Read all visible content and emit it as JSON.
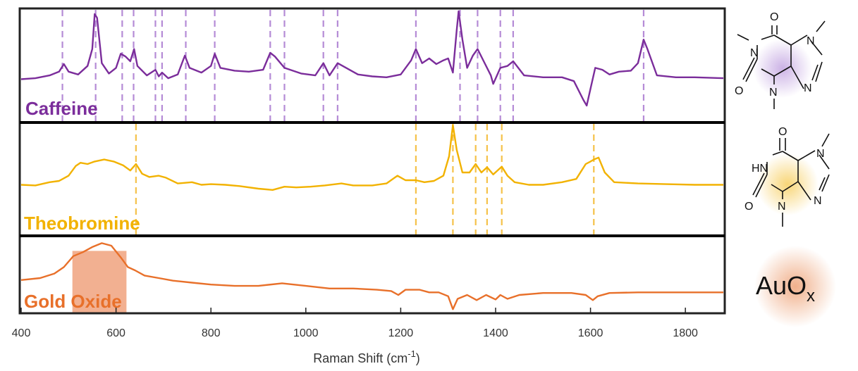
{
  "chart_data": {
    "type": "line",
    "xlabel": "Raman Shift (cm",
    "xlabel_sup": "-1",
    "xlabel_end": ")",
    "xlim": [
      400,
      1880
    ],
    "x_ticks": [
      400,
      600,
      800,
      1000,
      1200,
      1400,
      1600,
      1800
    ],
    "y_ticks_shown": false,
    "series": [
      {
        "name": "Caffeine",
        "color": "#7B2D9B",
        "peak_markers": [
          487,
          557,
          613,
          637,
          683,
          697,
          747,
          808,
          925,
          955,
          1037,
          1067,
          1232,
          1325,
          1362,
          1410,
          1437,
          1712
        ],
        "points": [
          [
            400,
            0.28
          ],
          [
            430,
            0.29
          ],
          [
            460,
            0.32
          ],
          [
            480,
            0.36
          ],
          [
            490,
            0.44
          ],
          [
            500,
            0.36
          ],
          [
            520,
            0.33
          ],
          [
            540,
            0.42
          ],
          [
            550,
            0.6
          ],
          [
            555,
            0.97
          ],
          [
            560,
            0.93
          ],
          [
            570,
            0.45
          ],
          [
            585,
            0.34
          ],
          [
            600,
            0.4
          ],
          [
            610,
            0.55
          ],
          [
            620,
            0.52
          ],
          [
            630,
            0.47
          ],
          [
            638,
            0.6
          ],
          [
            645,
            0.42
          ],
          [
            665,
            0.32
          ],
          [
            683,
            0.38
          ],
          [
            690,
            0.31
          ],
          [
            697,
            0.35
          ],
          [
            710,
            0.29
          ],
          [
            730,
            0.33
          ],
          [
            745,
            0.53
          ],
          [
            755,
            0.4
          ],
          [
            780,
            0.35
          ],
          [
            800,
            0.42
          ],
          [
            808,
            0.55
          ],
          [
            820,
            0.4
          ],
          [
            850,
            0.37
          ],
          [
            880,
            0.36
          ],
          [
            910,
            0.38
          ],
          [
            925,
            0.56
          ],
          [
            935,
            0.52
          ],
          [
            955,
            0.4
          ],
          [
            990,
            0.34
          ],
          [
            1020,
            0.32
          ],
          [
            1037,
            0.45
          ],
          [
            1050,
            0.32
          ],
          [
            1067,
            0.45
          ],
          [
            1085,
            0.4
          ],
          [
            1110,
            0.33
          ],
          [
            1140,
            0.31
          ],
          [
            1170,
            0.3
          ],
          [
            1200,
            0.33
          ],
          [
            1222,
            0.48
          ],
          [
            1232,
            0.6
          ],
          [
            1245,
            0.45
          ],
          [
            1260,
            0.5
          ],
          [
            1275,
            0.44
          ],
          [
            1290,
            0.48
          ],
          [
            1300,
            0.5
          ],
          [
            1310,
            0.35
          ],
          [
            1318,
            0.8
          ],
          [
            1322,
            1.0
          ],
          [
            1330,
            0.7
          ],
          [
            1340,
            0.4
          ],
          [
            1352,
            0.53
          ],
          [
            1362,
            0.6
          ],
          [
            1375,
            0.47
          ],
          [
            1390,
            0.32
          ],
          [
            1395,
            0.23
          ],
          [
            1410,
            0.4
          ],
          [
            1425,
            0.42
          ],
          [
            1437,
            0.47
          ],
          [
            1460,
            0.32
          ],
          [
            1500,
            0.3
          ],
          [
            1540,
            0.3
          ],
          [
            1565,
            0.26
          ],
          [
            1585,
            0.06
          ],
          [
            1592,
            0.0
          ],
          [
            1600,
            0.18
          ],
          [
            1610,
            0.4
          ],
          [
            1625,
            0.38
          ],
          [
            1640,
            0.33
          ],
          [
            1660,
            0.36
          ],
          [
            1685,
            0.37
          ],
          [
            1700,
            0.45
          ],
          [
            1712,
            0.7
          ],
          [
            1720,
            0.6
          ],
          [
            1740,
            0.32
          ],
          [
            1780,
            0.3
          ],
          [
            1820,
            0.3
          ],
          [
            1880,
            0.29
          ]
        ]
      },
      {
        "name": "Theobromine",
        "color": "#F2B200",
        "peak_markers": [
          642,
          1232,
          1310,
          1358,
          1382,
          1413,
          1607
        ],
        "points": [
          [
            400,
            0.06
          ],
          [
            430,
            0.05
          ],
          [
            460,
            0.1
          ],
          [
            480,
            0.12
          ],
          [
            500,
            0.2
          ],
          [
            515,
            0.35
          ],
          [
            525,
            0.4
          ],
          [
            540,
            0.38
          ],
          [
            555,
            0.42
          ],
          [
            575,
            0.45
          ],
          [
            595,
            0.42
          ],
          [
            615,
            0.36
          ],
          [
            630,
            0.28
          ],
          [
            642,
            0.38
          ],
          [
            655,
            0.23
          ],
          [
            670,
            0.18
          ],
          [
            690,
            0.2
          ],
          [
            705,
            0.17
          ],
          [
            730,
            0.08
          ],
          [
            760,
            0.1
          ],
          [
            780,
            0.06
          ],
          [
            800,
            0.07
          ],
          [
            830,
            0.06
          ],
          [
            860,
            0.04
          ],
          [
            900,
            0.0
          ],
          [
            930,
            -0.02
          ],
          [
            955,
            0.03
          ],
          [
            980,
            0.02
          ],
          [
            1010,
            0.03
          ],
          [
            1040,
            0.05
          ],
          [
            1075,
            0.08
          ],
          [
            1100,
            0.05
          ],
          [
            1140,
            0.05
          ],
          [
            1170,
            0.08
          ],
          [
            1193,
            0.2
          ],
          [
            1210,
            0.13
          ],
          [
            1232,
            0.13
          ],
          [
            1250,
            0.1
          ],
          [
            1270,
            0.12
          ],
          [
            1290,
            0.2
          ],
          [
            1302,
            0.5
          ],
          [
            1310,
            0.98
          ],
          [
            1318,
            0.6
          ],
          [
            1330,
            0.25
          ],
          [
            1345,
            0.25
          ],
          [
            1358,
            0.38
          ],
          [
            1370,
            0.25
          ],
          [
            1382,
            0.33
          ],
          [
            1395,
            0.22
          ],
          [
            1413,
            0.34
          ],
          [
            1425,
            0.2
          ],
          [
            1440,
            0.1
          ],
          [
            1470,
            0.06
          ],
          [
            1500,
            0.06
          ],
          [
            1540,
            0.1
          ],
          [
            1570,
            0.15
          ],
          [
            1590,
            0.38
          ],
          [
            1600,
            0.42
          ],
          [
            1607,
            0.45
          ],
          [
            1617,
            0.48
          ],
          [
            1630,
            0.25
          ],
          [
            1650,
            0.1
          ],
          [
            1700,
            0.08
          ],
          [
            1760,
            0.07
          ],
          [
            1820,
            0.06
          ],
          [
            1880,
            0.06
          ]
        ]
      },
      {
        "name": "Gold Oxide",
        "color": "#E8702A",
        "band": [
          508,
          622
        ],
        "points": [
          [
            400,
            0.35
          ],
          [
            440,
            0.38
          ],
          [
            470,
            0.45
          ],
          [
            490,
            0.55
          ],
          [
            510,
            0.72
          ],
          [
            530,
            0.78
          ],
          [
            550,
            0.86
          ],
          [
            570,
            0.92
          ],
          [
            590,
            0.88
          ],
          [
            610,
            0.7
          ],
          [
            625,
            0.55
          ],
          [
            640,
            0.5
          ],
          [
            660,
            0.42
          ],
          [
            690,
            0.38
          ],
          [
            720,
            0.34
          ],
          [
            760,
            0.31
          ],
          [
            800,
            0.28
          ],
          [
            850,
            0.26
          ],
          [
            900,
            0.26
          ],
          [
            950,
            0.3
          ],
          [
            1000,
            0.26
          ],
          [
            1050,
            0.22
          ],
          [
            1100,
            0.22
          ],
          [
            1150,
            0.2
          ],
          [
            1180,
            0.18
          ],
          [
            1195,
            0.12
          ],
          [
            1210,
            0.2
          ],
          [
            1240,
            0.2
          ],
          [
            1260,
            0.16
          ],
          [
            1280,
            0.16
          ],
          [
            1300,
            0.1
          ],
          [
            1310,
            -0.1
          ],
          [
            1320,
            0.06
          ],
          [
            1340,
            0.12
          ],
          [
            1360,
            0.04
          ],
          [
            1380,
            0.12
          ],
          [
            1400,
            0.05
          ],
          [
            1410,
            0.12
          ],
          [
            1425,
            0.06
          ],
          [
            1450,
            0.12
          ],
          [
            1500,
            0.15
          ],
          [
            1560,
            0.15
          ],
          [
            1590,
            0.12
          ],
          [
            1605,
            0.04
          ],
          [
            1615,
            0.1
          ],
          [
            1640,
            0.15
          ],
          [
            1700,
            0.16
          ],
          [
            1800,
            0.16
          ],
          [
            1880,
            0.16
          ]
        ]
      }
    ]
  },
  "structures": {
    "caffeine": {
      "atoms": [
        "O",
        "N",
        "N",
        "N",
        "O",
        "N"
      ]
    },
    "theobromine": {
      "atoms": [
        "O",
        "HN",
        "N",
        "N",
        "O",
        "N"
      ]
    },
    "gold_oxide": {
      "text": "AuO",
      "subscript": "x"
    }
  }
}
